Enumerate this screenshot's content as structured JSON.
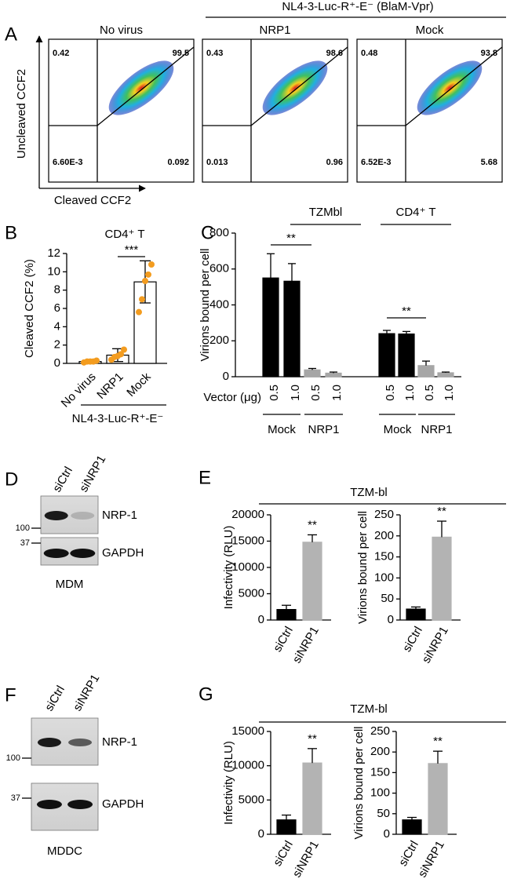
{
  "panel_a": {
    "letter": "A",
    "header": "NL4-3-Luc-R⁺-E⁻ (BlaM-Vpr)",
    "y_label": "Uncleaved CCF2",
    "x_label": "Cleaved CCF2",
    "plots": [
      {
        "title": "No virus",
        "quadrants": [
          "0.42",
          "99.5",
          "6.60E-3",
          "0.092"
        ]
      },
      {
        "title": "NRP1",
        "quadrants": [
          "0.43",
          "98.6",
          "0.013",
          "0.96"
        ]
      },
      {
        "title": "Mock",
        "quadrants": [
          "0.48",
          "93.8",
          "6.52E-3",
          "5.68"
        ]
      }
    ]
  },
  "chart_data": [
    {
      "type": "bar",
      "panel": "B",
      "title": "CD4⁺ T",
      "y_label": "Cleaved CCF2 (%)",
      "categories": [
        "No virus",
        "NRP1",
        "Mock"
      ],
      "values": [
        0.2,
        0.9,
        8.9
      ],
      "errors": [
        0.1,
        0.7,
        2.3
      ],
      "error_bars": "both",
      "points": [
        [
          0.1,
          0.2,
          0.2,
          0.2,
          0.3
        ],
        [
          0.4,
          0.7,
          0.8,
          1.0,
          1.5
        ],
        [
          5.6,
          7.0,
          9.0,
          9.7,
          10.8
        ]
      ],
      "color": "#ffffff",
      "edge_color": "#000000",
      "point_color": "#f39c1f",
      "ylim": [
        0,
        12
      ],
      "yticks": [
        0,
        2,
        4,
        6,
        8,
        10,
        12
      ],
      "annotations": [
        "***"
      ],
      "group_label": "NL4-3-Luc-R⁺-E⁻"
    },
    {
      "type": "bar",
      "panel": "C",
      "y_label": "Virions bound per cell",
      "x_label": "Vector (μg)",
      "categories": [
        "0.5",
        "1.0",
        "0.5",
        "1.0",
        "0.5",
        "1.0",
        "0.5",
        "1.0"
      ],
      "values": [
        550,
        532,
        38,
        20,
        240,
        238,
        62,
        22
      ],
      "errors": [
        135,
        98,
        8,
        6,
        18,
        14,
        25,
        4
      ],
      "error_bars": "up",
      "colors": [
        "#000000",
        "#000000",
        "#a6a6a6",
        "#a6a6a6",
        "#000000",
        "#000000",
        "#a6a6a6",
        "#a6a6a6"
      ],
      "ylim": [
        0,
        800
      ],
      "yticks": [
        0,
        200,
        400,
        600,
        800
      ],
      "annotations": [
        "**",
        "**"
      ],
      "groups": [
        "TZMbl",
        "CD4⁺ T"
      ],
      "subgroups": [
        "Mock",
        "NRP1",
        "Mock",
        "NRP1"
      ]
    },
    {
      "type": "bar",
      "y_label": "Infectivity (RLU)",
      "categories": [
        "siCtrl",
        "siNRP1"
      ],
      "values": [
        2000,
        14800
      ],
      "errors": [
        800,
        1400
      ],
      "error_bars": "up",
      "colors": [
        "#000000",
        "#b3b3b3"
      ],
      "ylim": [
        0,
        20000
      ],
      "yticks": [
        0,
        5000,
        10000,
        15000,
        20000
      ],
      "annotations": [
        "**"
      ]
    },
    {
      "type": "bar",
      "y_label": "Virions bound per cell",
      "categories": [
        "siCtrl",
        "siNRP1"
      ],
      "values": [
        26,
        197
      ],
      "errors": [
        5,
        38
      ],
      "error_bars": "up",
      "colors": [
        "#000000",
        "#b3b3b3"
      ],
      "ylim": [
        0,
        250
      ],
      "yticks": [
        0,
        50,
        100,
        150,
        200,
        250
      ],
      "annotations": [
        "**"
      ]
    },
    {
      "type": "bar",
      "y_label": "Infectivity (RLU)",
      "categories": [
        "siCtrl",
        "siNRP1"
      ],
      "values": [
        2100,
        10400
      ],
      "errors": [
        700,
        2100
      ],
      "error_bars": "up",
      "colors": [
        "#000000",
        "#b3b3b3"
      ],
      "ylim": [
        0,
        15000
      ],
      "yticks": [
        0,
        5000,
        10000,
        15000
      ],
      "annotations": [
        "**"
      ]
    },
    {
      "type": "bar",
      "y_label": "Virions bound per cell",
      "categories": [
        "siCtrl",
        "siNRP1"
      ],
      "values": [
        35,
        172
      ],
      "errors": [
        6,
        30
      ],
      "error_bars": "up",
      "colors": [
        "#000000",
        "#b3b3b3"
      ],
      "ylim": [
        0,
        250
      ],
      "yticks": [
        0,
        50,
        100,
        150,
        200,
        250
      ],
      "annotations": [
        "**"
      ]
    }
  ],
  "panel_e": {
    "letter": "E",
    "title": "TZM-bl"
  },
  "panel_g": {
    "letter": "G",
    "title": "TZM-bl"
  },
  "blots": [
    {
      "letter": "D",
      "lanes": [
        "siCtrl",
        "siNRP1"
      ],
      "bands": [
        "NRP-1",
        "GAPDH"
      ],
      "markers": [
        "100",
        "37"
      ],
      "cell": "MDM"
    },
    {
      "letter": "F",
      "lanes": [
        "siCtrl",
        "siNRP1"
      ],
      "bands": [
        "NRP-1",
        "GAPDH"
      ],
      "markers": [
        "100",
        "37"
      ],
      "cell": "MDDC"
    }
  ]
}
